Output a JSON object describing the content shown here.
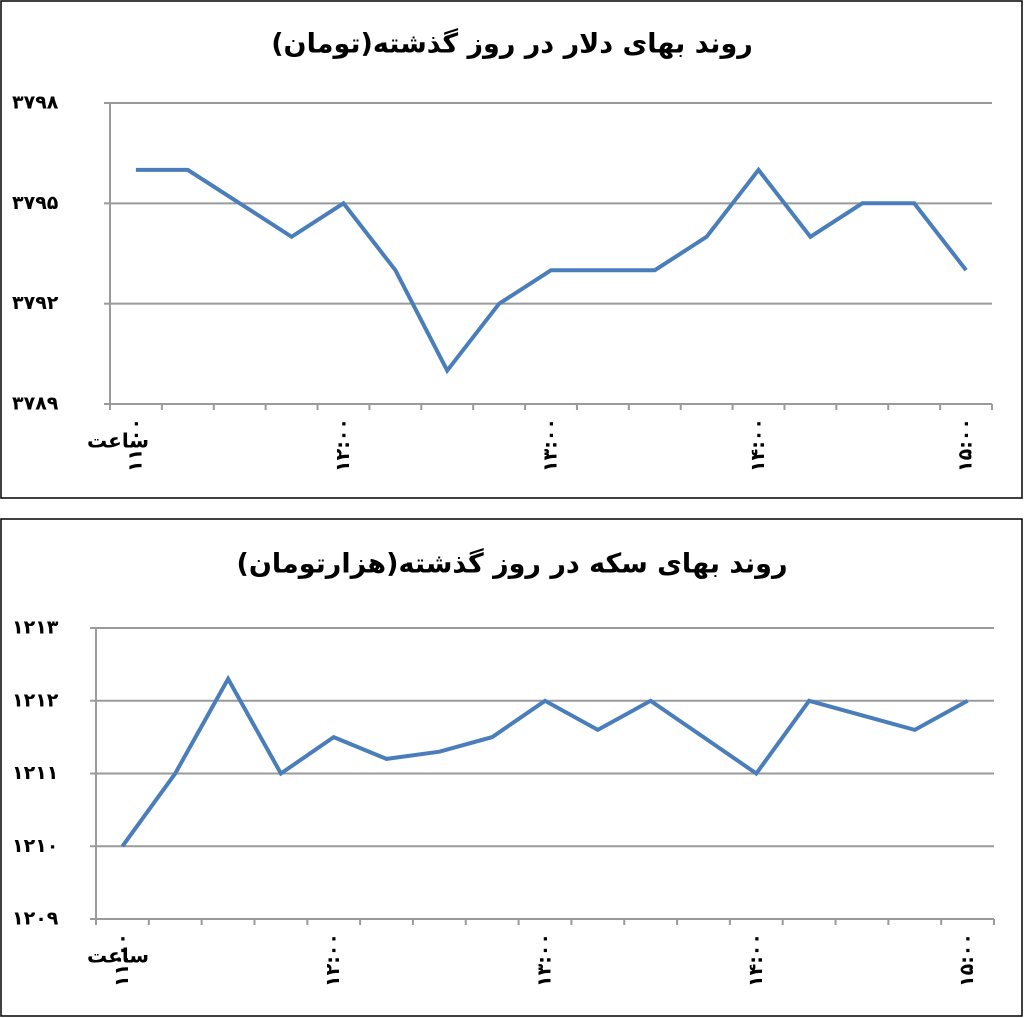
{
  "chart_data": [
    {
      "type": "line",
      "title": "روند بهای دلار در روز گذشته(تومان)",
      "x_label": "ساعت",
      "categories": [
        "۱۱:۰۰",
        null,
        null,
        null,
        "۱۲:۰۰",
        null,
        null,
        null,
        "۱۳:۰۰",
        null,
        null,
        null,
        "۱۴:۰۰",
        null,
        null,
        null,
        "۱۵:۰۰"
      ],
      "values": [
        3796,
        3796,
        3795,
        3794,
        3795,
        3793,
        3790,
        3792,
        3793,
        3793,
        3793,
        3794,
        3796,
        3794,
        3795,
        3795,
        3793
      ],
      "color": "#4a7ebb",
      "ylim": [
        3789,
        3798
      ],
      "yticks": [
        {
          "value": 3789,
          "label": "۳۷۸۹"
        },
        {
          "value": 3792,
          "label": "۳۷۹۲"
        },
        {
          "value": 3795,
          "label": "۳۷۹۵"
        },
        {
          "value": 3798,
          "label": "۳۷۹۸"
        }
      ],
      "grid": true
    },
    {
      "type": "line",
      "title": "روند بهای سکه در روز گذشته(هزارتومان)",
      "x_label": "ساعت",
      "categories": [
        "۱۱:۰۰",
        null,
        null,
        null,
        "۱۲:۰۰",
        null,
        null,
        null,
        "۱۳:۰۰",
        null,
        null,
        null,
        "۱۴:۰۰",
        null,
        null,
        null,
        "۱۵:۰۰"
      ],
      "values": [
        1210,
        1211,
        1212.3,
        1211,
        1211.5,
        1211.2,
        1211.3,
        1211.5,
        1212,
        1211.6,
        1212,
        1211.5,
        1211,
        1212,
        1211.8,
        1211.6,
        1212
      ],
      "color": "#4a7ebb",
      "ylim": [
        1209,
        1213
      ],
      "yticks": [
        {
          "value": 1209,
          "label": "۱۲۰۹"
        },
        {
          "value": 1210,
          "label": "۱۲۱۰"
        },
        {
          "value": 1211,
          "label": "۱۲۱۱"
        },
        {
          "value": 1212,
          "label": "۱۲۱۲"
        },
        {
          "value": 1213,
          "label": "۱۲۱۳"
        }
      ],
      "grid": true
    }
  ]
}
